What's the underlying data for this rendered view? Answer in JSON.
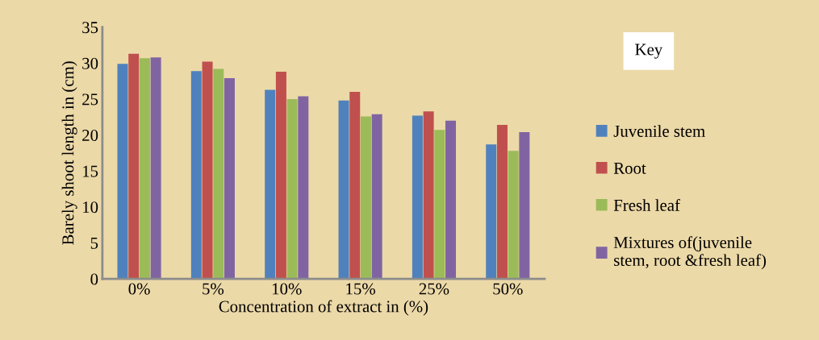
{
  "chart_data": {
    "type": "bar",
    "xlabel": "Concentration of extract in (%)",
    "ylabel": "Barely shoot length in (cm)",
    "legend_title": "Key",
    "categories": [
      "0%",
      "5%",
      "10%",
      "15%",
      "25%",
      "50%"
    ],
    "series": [
      {
        "name": "Juvenile stem",
        "color": "#4f81bd",
        "values": [
          29.9,
          28.9,
          26.3,
          24.8,
          22.7,
          18.7
        ]
      },
      {
        "name": "Root",
        "color": "#c0504d",
        "values": [
          31.3,
          30.2,
          28.8,
          26.0,
          23.3,
          21.4
        ]
      },
      {
        "name": "Fresh leaf",
        "color": "#9bbb59",
        "values": [
          30.7,
          29.2,
          25.0,
          22.6,
          20.7,
          17.8
        ]
      },
      {
        "name": "Mixtures of(juvenile stem, root &fresh leaf)",
        "color": "#8064a2",
        "values": [
          30.8,
          27.9,
          25.4,
          22.9,
          22.0,
          20.4
        ]
      }
    ],
    "ylim": [
      0,
      35
    ],
    "yticks": [
      0,
      5,
      10,
      15,
      20,
      25,
      30,
      35
    ],
    "grid": false,
    "legend": "right"
  }
}
